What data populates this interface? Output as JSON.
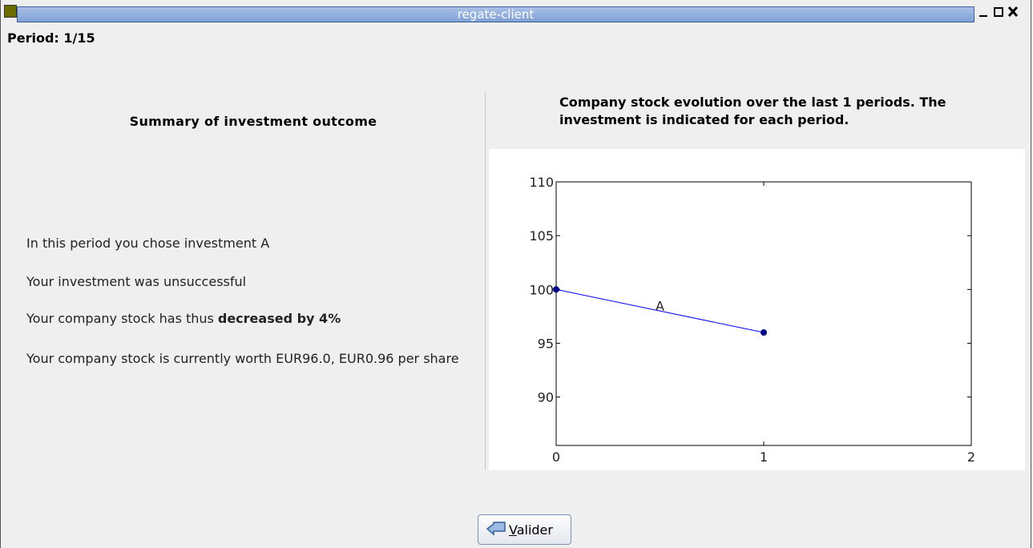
{
  "window": {
    "title": "regate-client"
  },
  "period": "Period: 1/15",
  "summary": {
    "title": "Summary of investment outcome",
    "lines": [
      {
        "text": "In this period you chose investment A"
      },
      {
        "text": "Your investment was unsuccessful"
      },
      {
        "text": "Your company stock has thus",
        "emphasis": "decreased by 4%"
      },
      {
        "text": "Your company stock is currently worth EUR96.0, EUR0.96 per share"
      }
    ]
  },
  "chart_data": {
    "type": "line",
    "title": "Company stock evolution over the last 1 periods. The investment is indicated for each period.",
    "x": [
      0,
      1
    ],
    "series": [
      {
        "color": "#0000ff",
        "values": [
          100,
          96
        ]
      }
    ],
    "xlim": [
      0,
      2
    ],
    "xticks": [
      0,
      1,
      2
    ],
    "ylim": [
      85.5,
      110
    ],
    "yticks": [
      90,
      95,
      100,
      105,
      110
    ],
    "annotations": [
      {
        "text": "A",
        "x": 0.5,
        "y": 98.5
      }
    ]
  },
  "button": {
    "label": "Valider"
  }
}
